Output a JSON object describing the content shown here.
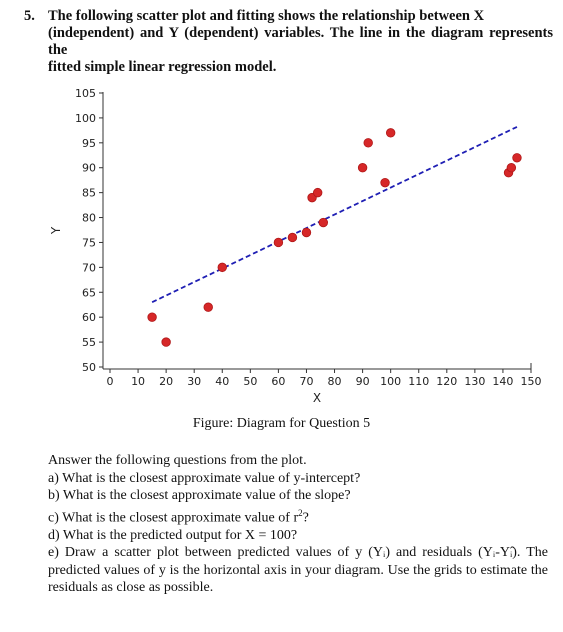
{
  "question": {
    "number": "5.",
    "text_lines": [
      "The following scatter plot and fitting shows the relationship between X",
      "(independent) and Y (dependent) variables. The line in the diagram represents the",
      "fitted simple linear regression model."
    ]
  },
  "chart_data": {
    "type": "scatter",
    "xlabel": "X",
    "ylabel": "Y",
    "xlim": [
      10,
      150
    ],
    "ylim": [
      50,
      105
    ],
    "xticks": [
      0,
      10,
      20,
      30,
      40,
      50,
      60,
      70,
      80,
      90,
      100,
      110,
      120,
      130,
      140,
      150
    ],
    "yticks": [
      50,
      55,
      60,
      65,
      70,
      75,
      80,
      85,
      90,
      95,
      100,
      105
    ],
    "points": [
      {
        "x": 15,
        "y": 60
      },
      {
        "x": 20,
        "y": 55
      },
      {
        "x": 35,
        "y": 62
      },
      {
        "x": 40,
        "y": 70
      },
      {
        "x": 60,
        "y": 75
      },
      {
        "x": 65,
        "y": 76
      },
      {
        "x": 70,
        "y": 77
      },
      {
        "x": 72,
        "y": 84
      },
      {
        "x": 74,
        "y": 85
      },
      {
        "x": 76,
        "y": 79
      },
      {
        "x": 90,
        "y": 90
      },
      {
        "x": 92,
        "y": 95
      },
      {
        "x": 98,
        "y": 87
      },
      {
        "x": 100,
        "y": 97
      },
      {
        "x": 142,
        "y": 89
      },
      {
        "x": 143,
        "y": 90
      },
      {
        "x": 145,
        "y": 92
      }
    ],
    "fit_line": {
      "x": [
        15,
        145
      ],
      "y": [
        63,
        98.2
      ]
    },
    "point_color": "#d62728",
    "line_color": "#1f1fb4",
    "line_style": "dashed"
  },
  "caption": "Figure: Diagram for Question 5",
  "answers": {
    "intro": "Answer the following questions from the plot.",
    "a": "a) What is the closest approximate value of y-intercept?",
    "b": "b) What is the closest approximate value of the slope?",
    "c_pre": "c) What is the closest approximate value of r",
    "c_sup": "2",
    "c_post": "?",
    "d": "d) What is the predicted output for X = 100?",
    "e": "e) Draw a scatter plot between predicted values of y (Yᵢ) and residuals (Yᵢ-Yᵢ̂). The predicted values of y is the horizontal axis in your diagram. Use the grids to estimate the residuals as close as possible."
  }
}
